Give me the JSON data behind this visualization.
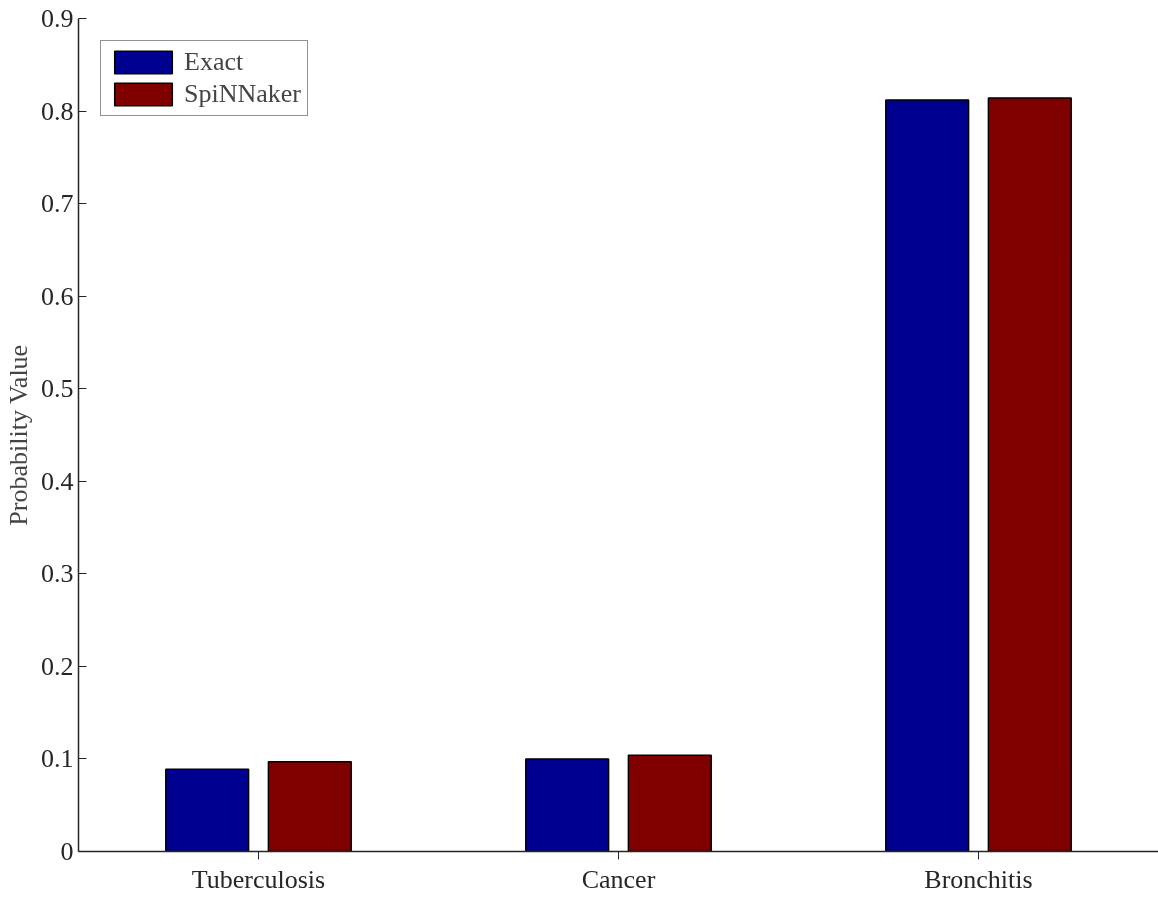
{
  "chart_data": {
    "type": "bar",
    "ylabel": "Probability Value",
    "categories": [
      "Tuberculosis",
      "Cancer",
      "Bronchitis"
    ],
    "series": [
      {
        "name": "Exact",
        "color": "#000090",
        "values": [
          0.089,
          0.1,
          0.812
        ]
      },
      {
        "name": "SpiNNaker",
        "color": "#800000",
        "values": [
          0.097,
          0.104,
          0.814
        ]
      }
    ],
    "ylim": [
      0,
      0.9
    ],
    "yticks": [
      0,
      0.1,
      0.2,
      0.3,
      0.4,
      0.5,
      0.6,
      0.7,
      0.8,
      0.9
    ],
    "grid": false,
    "legend": "top left"
  }
}
